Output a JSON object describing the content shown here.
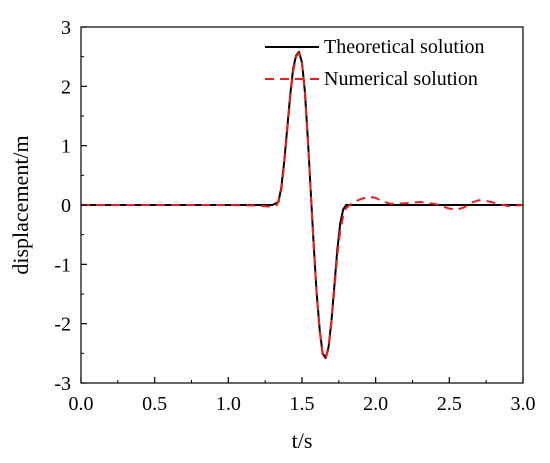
{
  "chart_data": {
    "type": "line",
    "title": "",
    "xlabel": "t/s",
    "ylabel": "displacement/m",
    "xlim": [
      0.0,
      3.0
    ],
    "ylim": [
      -3,
      3
    ],
    "x_ticks": [
      "0.0",
      "0.5",
      "1.0",
      "1.5",
      "2.0",
      "2.5",
      "3.0"
    ],
    "y_ticks": [
      "3",
      "2",
      "1",
      "0",
      "-1",
      "-2",
      "-3"
    ],
    "grid": false,
    "legend_position": "top-right",
    "series": [
      {
        "name": "Theoretical solution",
        "color": "#000000",
        "style": "solid",
        "x": [
          0.0,
          0.5,
          1.0,
          1.3,
          1.34,
          1.36,
          1.38,
          1.4,
          1.42,
          1.44,
          1.46,
          1.48,
          1.5,
          1.52,
          1.54,
          1.56,
          1.58,
          1.6,
          1.62,
          1.64,
          1.66,
          1.68,
          1.7,
          1.72,
          1.74,
          1.76,
          1.78,
          1.8,
          2.0,
          2.5,
          3.0
        ],
        "values": [
          0.0,
          0.0,
          0.0,
          0.0,
          0.05,
          0.3,
          0.75,
          1.3,
          1.85,
          2.3,
          2.52,
          2.58,
          2.4,
          1.9,
          1.1,
          0.2,
          -0.7,
          -1.5,
          -2.1,
          -2.5,
          -2.58,
          -2.4,
          -1.95,
          -1.35,
          -0.75,
          -0.3,
          -0.07,
          0.0,
          0.0,
          0.0,
          0.0
        ]
      },
      {
        "name": "Numerical solution",
        "color": "#e8201e",
        "style": "dashed",
        "x": [
          0.0,
          0.5,
          1.0,
          1.2,
          1.3,
          1.33,
          1.36,
          1.38,
          1.4,
          1.42,
          1.44,
          1.46,
          1.48,
          1.5,
          1.52,
          1.54,
          1.56,
          1.58,
          1.6,
          1.62,
          1.64,
          1.66,
          1.68,
          1.7,
          1.72,
          1.74,
          1.76,
          1.78,
          1.8,
          1.85,
          1.9,
          1.95,
          2.0,
          2.05,
          2.1,
          2.2,
          2.3,
          2.4,
          2.5,
          2.55,
          2.6,
          2.65,
          2.7,
          2.75,
          2.8,
          2.9,
          3.0
        ],
        "values": [
          0.0,
          0.0,
          0.0,
          -0.01,
          -0.03,
          0.0,
          0.25,
          0.7,
          1.25,
          1.8,
          2.25,
          2.5,
          2.56,
          2.38,
          1.88,
          1.08,
          0.18,
          -0.72,
          -1.52,
          -2.12,
          -2.52,
          -2.6,
          -2.42,
          -1.98,
          -1.42,
          -0.85,
          -0.42,
          -0.18,
          -0.05,
          0.05,
          0.1,
          0.14,
          0.12,
          0.06,
          0.02,
          0.03,
          0.05,
          0.02,
          -0.06,
          -0.08,
          -0.04,
          0.04,
          0.08,
          0.07,
          0.04,
          -0.02,
          0.0
        ]
      }
    ]
  }
}
